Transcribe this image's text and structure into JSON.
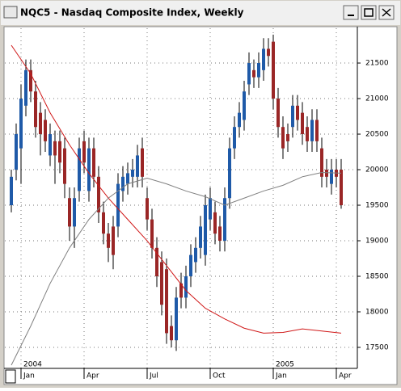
{
  "chart_data": {
    "type": "candlestick",
    "title": "NQC5 - Nasdaq Composite Index, Weekly",
    "categories": [
      null,
      null,
      "Jan",
      null,
      null,
      null,
      null,
      null,
      null,
      null,
      null,
      null,
      null,
      null,
      null,
      "Apr",
      null,
      null,
      null,
      null,
      null,
      null,
      null,
      null,
      null,
      null,
      null,
      null,
      "Jul",
      null,
      null,
      null,
      null,
      null,
      null,
      null,
      null,
      null,
      null,
      null,
      null,
      "Oct",
      null,
      null,
      null,
      null,
      null,
      null,
      null,
      null,
      null,
      null,
      null,
      null,
      "Jan",
      null,
      null,
      null,
      null,
      null,
      null,
      null,
      null,
      null,
      null,
      null,
      null,
      "Apr",
      null
    ],
    "years": [
      null,
      null,
      "2004",
      null,
      null,
      null,
      null,
      null,
      null,
      null,
      null,
      null,
      null,
      null,
      null,
      null,
      null,
      null,
      null,
      null,
      null,
      null,
      null,
      null,
      null,
      null,
      null,
      null,
      null,
      null,
      null,
      null,
      null,
      null,
      null,
      null,
      null,
      null,
      null,
      null,
      null,
      null,
      null,
      null,
      null,
      null,
      null,
      null,
      null,
      null,
      null,
      null,
      null,
      null,
      "2005",
      null,
      null,
      null,
      null,
      null,
      null,
      null,
      null,
      null,
      null,
      null,
      null,
      null,
      null
    ],
    "open": [
      19500,
      20000,
      20300,
      20900,
      21400,
      21100,
      20800,
      20700,
      20200,
      20400,
      20400,
      20300,
      19600,
      19200,
      19700,
      20400,
      19700,
      20300,
      19900,
      19400,
      19100,
      19200,
      19200,
      19700,
      19800,
      19900,
      19900,
      20300,
      19600,
      19300,
      18900,
      18700,
      18600,
      17800,
      17600,
      18400,
      18200,
      18500,
      18700,
      18900,
      18800,
      19300,
      19400,
      19200,
      19000,
      19600,
      20300,
      20600,
      20700,
      21200,
      21400,
      21300,
      21400,
      21700,
      21800,
      21000,
      20600,
      20500,
      20600,
      20900,
      20800,
      20600,
      20400,
      20700,
      20300,
      20000,
      19800,
      20000,
      20000
    ],
    "high": [
      20000,
      20650,
      21200,
      21550,
      21550,
      21250,
      20950,
      20850,
      20650,
      20550,
      20550,
      20450,
      19750,
      19750,
      20450,
      20550,
      20450,
      20450,
      20050,
      19550,
      19250,
      19350,
      19950,
      20050,
      20100,
      20150,
      20350,
      20450,
      19750,
      19450,
      19050,
      18850,
      18750,
      17950,
      18350,
      18550,
      18650,
      18950,
      19050,
      19350,
      19650,
      19750,
      19550,
      19350,
      19750,
      20450,
      20750,
      20950,
      21250,
      21650,
      21550,
      21650,
      21850,
      21850,
      21900,
      21150,
      20750,
      20650,
      21050,
      21050,
      20950,
      20750,
      20850,
      20850,
      20450,
      20150,
      20150,
      20150,
      20150
    ],
    "low": [
      19400,
      19850,
      19800,
      20750,
      20950,
      20450,
      20200,
      20250,
      20050,
      19800,
      19950,
      19600,
      19000,
      18900,
      19550,
      19950,
      19550,
      19750,
      19250,
      18950,
      18700,
      18600,
      19050,
      19550,
      19650,
      19750,
      19750,
      19750,
      19150,
      18750,
      18350,
      17950,
      17550,
      17500,
      17450,
      18050,
      18050,
      18350,
      18550,
      18750,
      18650,
      19150,
      18950,
      18850,
      18850,
      19450,
      20150,
      20450,
      20550,
      21050,
      21150,
      21150,
      21250,
      21450,
      20850,
      20450,
      20150,
      20250,
      20450,
      20550,
      20350,
      20250,
      20250,
      20250,
      19750,
      19750,
      19650,
      19750,
      19450
    ],
    "close": [
      19900,
      20500,
      21000,
      21400,
      21100,
      20600,
      20500,
      20400,
      20500,
      20200,
      20100,
      19800,
      19200,
      19600,
      20300,
      20100,
      20300,
      19900,
      19400,
      19100,
      18900,
      18800,
      19800,
      19900,
      19950,
      20000,
      20200,
      19900,
      19300,
      18900,
      18500,
      18100,
      17700,
      17600,
      18200,
      18200,
      18500,
      18800,
      18900,
      19200,
      19500,
      19600,
      19100,
      19000,
      19600,
      20300,
      20600,
      20800,
      21100,
      21500,
      21300,
      21500,
      21700,
      21600,
      21000,
      20600,
      20300,
      20400,
      20900,
      20700,
      20500,
      20400,
      20700,
      20400,
      19900,
      19900,
      20000,
      19900,
      19500
    ],
    "up_color": "#1f5aa8",
    "down_color": "#9a2626",
    "lines": [
      {
        "color": "#d01818",
        "x": [
          0,
          4,
          8,
          12,
          16,
          20,
          24,
          28,
          32,
          36,
          40,
          44,
          48,
          52,
          56,
          60,
          64,
          68
        ],
        "values": [
          21750,
          21350,
          20800,
          20350,
          19950,
          19600,
          19300,
          19000,
          18650,
          18300,
          18050,
          17900,
          17770,
          17700,
          17710,
          17760,
          17730,
          17700
        ]
      },
      {
        "color": "#808080",
        "x": [
          0,
          4,
          8,
          12,
          16,
          20,
          24,
          28,
          32,
          36,
          40,
          44,
          48,
          52,
          56,
          60,
          64,
          68
        ],
        "values": [
          17250,
          17800,
          18400,
          18900,
          19300,
          19600,
          19800,
          19880,
          19800,
          19700,
          19620,
          19500,
          19600,
          19700,
          19780,
          19900,
          19960,
          19950
        ]
      }
    ],
    "ylim": [
      17216,
      21989
    ],
    "yticks": [
      17500,
      18000,
      18500,
      19000,
      19500,
      20000,
      20500,
      21000,
      21500
    ],
    "grid": true
  }
}
